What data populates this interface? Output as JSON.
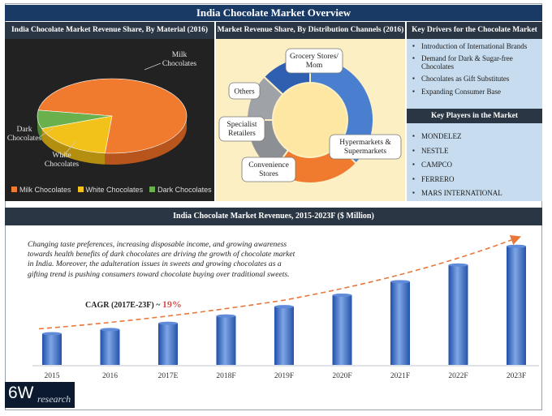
{
  "page_title": "India Chocolate Market Overview",
  "pie_panel": {
    "title": "India Chocolate Market Revenue Share, By Material (2016)",
    "labels": {
      "milk": "Milk Chocolates",
      "white": "White Chocolates",
      "dark": "Dark Chocolates"
    }
  },
  "donut_panel": {
    "title": "Market Revenue Share, By Distribution Channels (2016)",
    "labels": {
      "grocery": "Grocery Stores/ Mom",
      "others": "Others",
      "specialist": "Specialist Retailers",
      "convenience": "Convenience Stores",
      "hyper": "Hypermarkets & Supermarkets"
    }
  },
  "drivers": {
    "title": "Key Drivers for the Chocolate Market",
    "items": [
      "Introduction of International Brands",
      "Demand for Dark & Sugar-free Chocolates",
      "Chocolates as Gift Substitutes",
      "Expanding Consumer Base"
    ]
  },
  "players": {
    "title": "Key Players in the Market",
    "items": [
      "MONDELEZ",
      "NESTLE",
      "CAMPCO",
      "FERRERO",
      "MARS INTERNATIONAL"
    ]
  },
  "revenue_section": {
    "title": "India  Chocolate Market Revenues, 2015-2023F ($ Million)",
    "intro": "Changing taste preferences, increasing disposable income, and growing awareness towards health benefits of dark chocolates are driving the growth of chocolate market in India. Moreover, the adulteration issues in sweets and growing chocolates as a gifting trend is pushing consumers toward chocolate buying over traditional sweets.",
    "cagr_label": "CAGR (2017E-23F) ~",
    "cagr_value": "19%"
  },
  "logo": {
    "big": "6W",
    "small": "research"
  },
  "colors": {
    "milk": "#f07a2e",
    "white": "#f2c21b",
    "dark": "#6ab04c",
    "grocery": "#4a7fd0",
    "others": "#2f5fb0",
    "specialist": "#9fa2a6",
    "convenience": "#8c8f93",
    "hyper": "#f07a2e",
    "bar": "#3567c4",
    "trend": "#e8773a"
  },
  "chart_data": [
    {
      "type": "pie",
      "title": "India Chocolate Market Revenue Share, By Material (2016)",
      "categories": [
        "Milk Chocolates",
        "White Chocolates",
        "Dark Chocolates"
      ],
      "values": [
        74,
        18,
        8
      ],
      "legend": "bottom"
    },
    {
      "type": "pie",
      "subtype": "donut",
      "title": "Market Revenue Share, By Distribution Channels (2016)",
      "categories": [
        "Grocery Stores/ Mom",
        "Hypermarkets & Supermarkets",
        "Convenience Stores",
        "Specialist Retailers",
        "Others"
      ],
      "values": [
        37,
        23,
        15,
        12,
        13
      ]
    },
    {
      "type": "bar",
      "title": "India  Chocolate Market Revenues, 2015-2023F ($ Million)",
      "categories": [
        "2015",
        "2016",
        "2017E",
        "2018F",
        "2019F",
        "2020F",
        "2021F",
        "2022F",
        "2023F"
      ],
      "values": [
        30,
        34,
        40,
        47,
        56,
        67,
        80,
        96,
        114
      ],
      "ylim": [
        0,
        120
      ],
      "trend_line": true,
      "grid": false
    }
  ]
}
